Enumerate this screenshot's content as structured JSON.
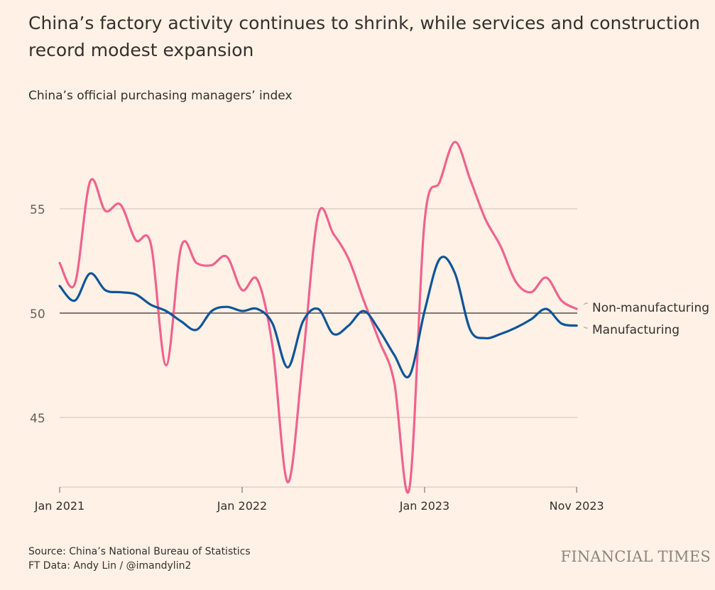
{
  "title": "China’s factory activity continues to shrink, while services and construction record modest expansion",
  "subtitle": "China’s official purchasing managers’ index",
  "source": "Source: China’s National Bureau of Statistics",
  "credit": "FT Data: Andy Lin / @imandylin2",
  "logo": "FINANCIAL TIMES",
  "chart_data": {
    "type": "line",
    "title": "China’s official purchasing managers’ index",
    "x_start": "Jan 2021",
    "x_end": "Nov 2023",
    "x_ticks": [
      "Jan 2021",
      "Jan 2022",
      "Jan 2023",
      "Nov 2023"
    ],
    "y_ticks": [
      45,
      50,
      55
    ],
    "ylim": [
      41.5,
      59.5
    ],
    "reference_line": 50,
    "grid": true,
    "legend": "line-end labels, right",
    "series": [
      {
        "name": "Non-manufacturing",
        "color": "#f0628f",
        "values": [
          52.4,
          51.4,
          56.3,
          54.9,
          55.2,
          53.5,
          53.3,
          47.5,
          53.2,
          52.4,
          52.3,
          52.7,
          51.1,
          51.6,
          48.4,
          41.9,
          47.8,
          54.7,
          53.8,
          52.6,
          50.6,
          48.7,
          46.7,
          41.6,
          54.4,
          56.3,
          58.2,
          56.4,
          54.5,
          53.2,
          51.5,
          51.0,
          51.7,
          50.6,
          50.2
        ]
      },
      {
        "name": "Manufacturing",
        "color": "#0f5499",
        "values": [
          51.3,
          50.6,
          51.9,
          51.1,
          51.0,
          50.9,
          50.4,
          50.1,
          49.6,
          49.2,
          50.1,
          50.3,
          50.1,
          50.2,
          49.5,
          47.4,
          49.6,
          50.2,
          49.0,
          49.4,
          50.1,
          49.2,
          48.0,
          47.0,
          50.1,
          52.6,
          51.9,
          49.2,
          48.8,
          49.0,
          49.3,
          49.7,
          50.2,
          49.5,
          49.4
        ]
      }
    ]
  }
}
